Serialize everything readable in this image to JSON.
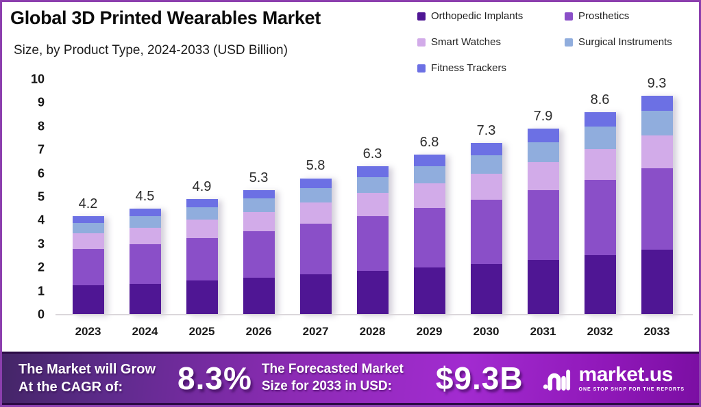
{
  "chart_data": {
    "type": "bar",
    "stacked": true,
    "title": "Global 3D Printed Wearables Market",
    "subtitle": "Size, by Product Type, 2024-2033 (USD Billion)",
    "categories": [
      "2023",
      "2024",
      "2025",
      "2026",
      "2027",
      "2028",
      "2029",
      "2030",
      "2031",
      "2032",
      "2033"
    ],
    "totals": [
      4.2,
      4.5,
      4.9,
      5.3,
      5.8,
      6.3,
      6.8,
      7.3,
      7.9,
      8.6,
      9.3
    ],
    "series": [
      {
        "name": "Orthopedic Implants",
        "color": "#4F1694",
        "values": [
          1.25,
          1.32,
          1.45,
          1.57,
          1.71,
          1.86,
          2.0,
          2.15,
          2.34,
          2.54,
          2.75
        ]
      },
      {
        "name": "Prosthetics",
        "color": "#8A4FC8",
        "values": [
          1.55,
          1.66,
          1.82,
          1.97,
          2.16,
          2.34,
          2.53,
          2.73,
          2.94,
          3.2,
          3.46
        ]
      },
      {
        "name": "Smart Watches",
        "color": "#D2ABE9",
        "values": [
          0.65,
          0.7,
          0.76,
          0.82,
          0.9,
          0.97,
          1.05,
          1.11,
          1.2,
          1.3,
          1.41
        ]
      },
      {
        "name": "Surgical Instruments",
        "color": "#90ADDD",
        "values": [
          0.45,
          0.5,
          0.53,
          0.57,
          0.62,
          0.68,
          0.73,
          0.79,
          0.86,
          0.94,
          1.03
        ]
      },
      {
        "name": "Fitness Trackers",
        "color": "#6C70E4",
        "values": [
          0.3,
          0.32,
          0.34,
          0.37,
          0.41,
          0.45,
          0.49,
          0.52,
          0.56,
          0.62,
          0.65
        ]
      }
    ],
    "xlabel": "",
    "ylabel": "",
    "ylim": [
      0,
      10
    ],
    "yticks": [
      0,
      1,
      2,
      3,
      4,
      5,
      6,
      7,
      8,
      9,
      10
    ],
    "grid": false,
    "legend_position": "top-right",
    "value_labels": [
      "4.2",
      "4.5",
      "4.9",
      "5.3",
      "5.8",
      "6.3",
      "6.8",
      "7.3",
      "7.9",
      "8.6",
      "9.3"
    ]
  },
  "banner": {
    "cagr_line1": "The Market will Grow",
    "cagr_line2": "At the CAGR of:",
    "cagr_value": "8.3%",
    "forecast_line1": "The Forecasted Market",
    "forecast_line2": "Size for 2033 in USD:",
    "forecast_value": "$9.3B",
    "logo": {
      "wordmark": "market.us",
      "tagline": "ONE STOP SHOP FOR THE REPORTS"
    }
  },
  "colors": {
    "frame_border": "#8c3fae",
    "banner_edge": "#2b0a45",
    "banner_gradient_start": "#432566",
    "banner_gradient_mid": "#a22bd0",
    "banner_gradient_end": "#7a0ea2",
    "baseline": "#dbd7db",
    "text_dark": "#141414"
  }
}
